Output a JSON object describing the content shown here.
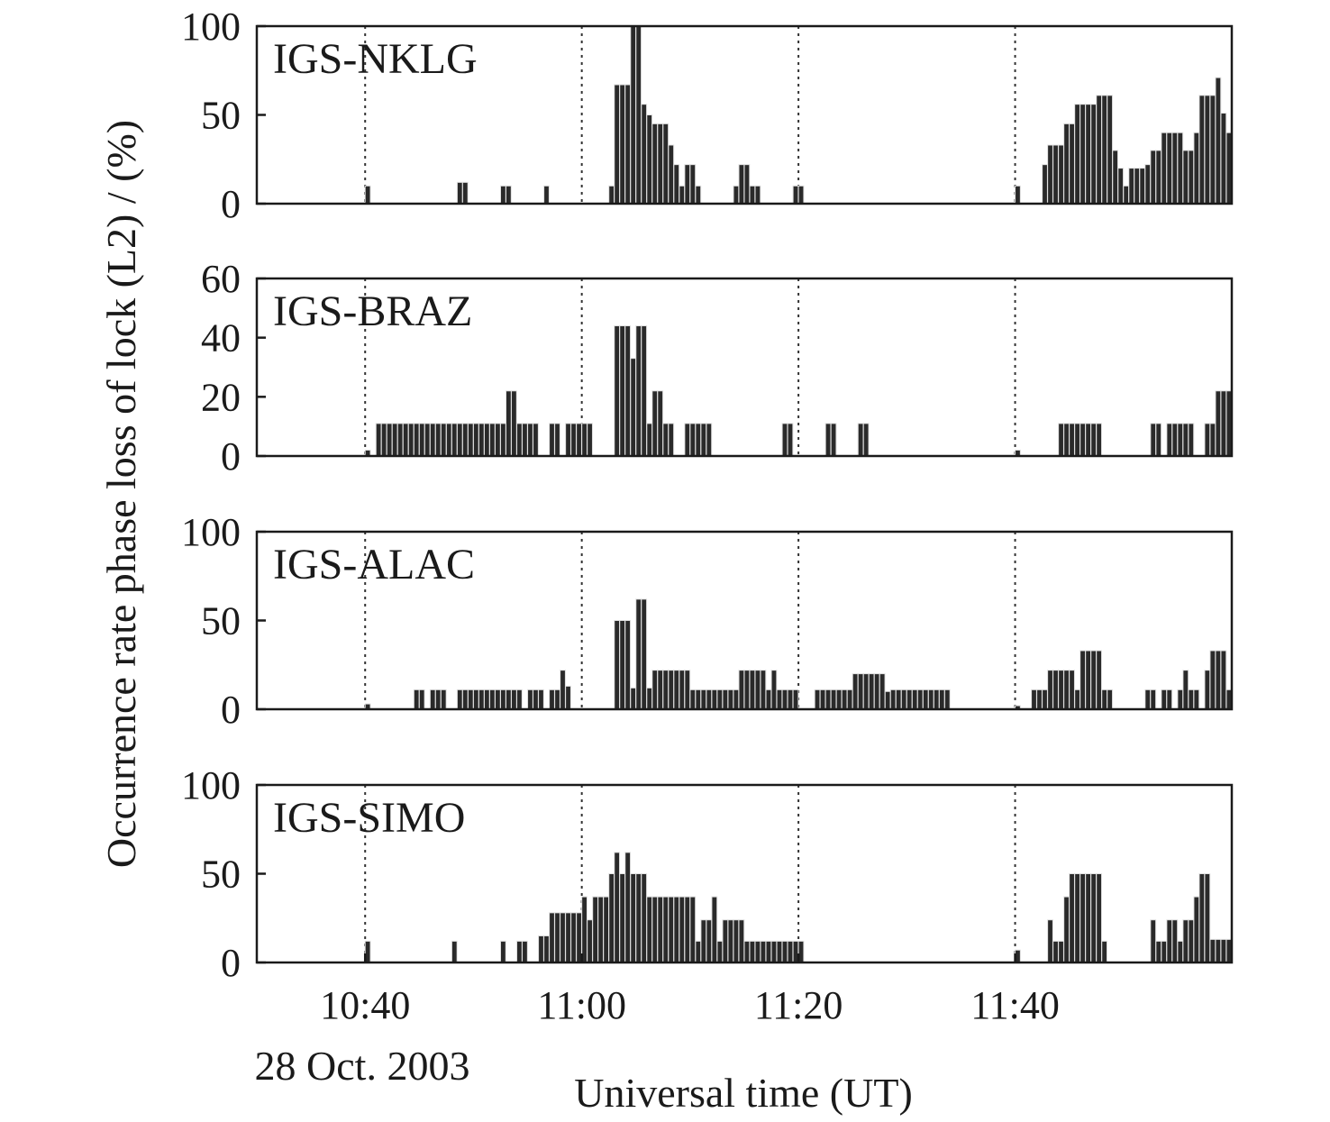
{
  "chart_data": {
    "type": "bar",
    "ylabel": "Occurrence rate phase loss of lock (L2) / (%)",
    "xlabel": "Universal time (UT)",
    "date_label": "28 Oct. 2003",
    "x_ticks": [
      "10:40",
      "11:00",
      "11:20",
      "11:40"
    ],
    "x_unit": "minutes after 10:30 UT",
    "xlim": [
      0,
      90
    ],
    "grid": "dotted vertical lines at 10:40, 11:00, 11:20, 11:40",
    "panels": [
      {
        "name": "IGS-NKLG",
        "ylim": [
          0,
          100
        ],
        "yticks": [
          "0",
          "50",
          "100"
        ],
        "x": [
          10,
          18.5,
          19,
          22.5,
          23,
          26.5,
          32.5,
          33,
          33.5,
          34,
          34.5,
          35,
          35.5,
          36,
          36.5,
          37,
          37.5,
          38,
          38.5,
          39,
          39.5,
          40,
          40.5,
          44,
          44.5,
          45,
          45.5,
          46,
          49.5,
          50,
          70,
          72.5,
          73,
          73.5,
          74,
          74.5,
          75,
          75.5,
          76,
          76.5,
          77,
          77.5,
          78,
          78.5,
          79,
          79.5,
          80,
          80.5,
          81,
          81.5,
          82,
          82.5,
          83,
          83.5,
          84,
          84.5,
          85,
          85.5,
          86,
          86.5,
          87,
          87.5,
          88,
          88.5,
          89,
          89.5
        ],
        "values": [
          10,
          12,
          12,
          10,
          10,
          10,
          10,
          67,
          67,
          67,
          100,
          100,
          56,
          50,
          45,
          45,
          45,
          33,
          22,
          10,
          22,
          22,
          10,
          10,
          22,
          22,
          10,
          10,
          10,
          10,
          10,
          22,
          33,
          33,
          33,
          45,
          45,
          56,
          56,
          56,
          56,
          61,
          61,
          61,
          30,
          20,
          10,
          20,
          20,
          20,
          22,
          30,
          30,
          40,
          40,
          40,
          40,
          30,
          30,
          40,
          61,
          61,
          61,
          71,
          51,
          40
        ]
      },
      {
        "name": "IGS-BRAZ",
        "ylim": [
          0,
          60
        ],
        "yticks": [
          "0",
          "20",
          "40",
          "60"
        ],
        "x": [
          10,
          11,
          11.5,
          12,
          12.5,
          13,
          13.5,
          14,
          14.5,
          15,
          15.5,
          16,
          16.5,
          17,
          17.5,
          18,
          18.5,
          19,
          19.5,
          20,
          20.5,
          21,
          21.5,
          22,
          22.5,
          23,
          23.5,
          24,
          24.5,
          25,
          25.5,
          27,
          27.5,
          28.5,
          29,
          29.5,
          30,
          30.5,
          33,
          33.5,
          34,
          34.5,
          35,
          35.5,
          36,
          36.5,
          37,
          37.5,
          38,
          39.5,
          40,
          40.5,
          41,
          41.5,
          48.5,
          49,
          52.5,
          53,
          55.5,
          56,
          70,
          74,
          74.5,
          75,
          75.5,
          76,
          76.5,
          77,
          77.5,
          82.5,
          83,
          84,
          84.5,
          85,
          85.5,
          86,
          87.5,
          88,
          88.5,
          89,
          89.5
        ],
        "values": [
          2,
          11,
          11,
          11,
          11,
          11,
          11,
          11,
          11,
          11,
          11,
          11,
          11,
          11,
          11,
          11,
          11,
          11,
          11,
          11,
          11,
          11,
          11,
          11,
          11,
          22,
          22,
          11,
          11,
          11,
          11,
          11,
          11,
          11,
          11,
          11,
          11,
          11,
          44,
          44,
          44,
          33,
          44,
          44,
          11,
          22,
          22,
          11,
          11,
          11,
          11,
          11,
          11,
          11,
          11,
          11,
          11,
          11,
          11,
          11,
          2,
          11,
          11,
          11,
          11,
          11,
          11,
          11,
          11,
          11,
          11,
          11,
          11,
          11,
          11,
          11,
          11,
          11,
          22,
          22,
          22
        ]
      },
      {
        "name": "IGS-ALAC",
        "ylim": [
          0,
          100
        ],
        "yticks": [
          "0",
          "50",
          "100"
        ],
        "x": [
          10,
          14.5,
          15,
          16,
          16.5,
          17,
          18.5,
          19,
          19.5,
          20,
          20.5,
          21,
          21.5,
          22,
          22.5,
          23,
          23.5,
          24,
          25,
          25.5,
          26,
          27,
          27.5,
          28,
          28.5,
          33,
          33.5,
          34,
          34.5,
          35,
          35.5,
          36,
          36.5,
          37,
          37.5,
          38,
          38.5,
          39,
          39.5,
          40,
          40.5,
          41,
          41.5,
          42,
          42.5,
          43,
          43.5,
          44,
          44.5,
          45,
          45.5,
          46,
          46.5,
          47,
          47.5,
          48,
          48.5,
          49,
          49.5,
          51.5,
          52,
          52.5,
          53,
          53.5,
          54,
          54.5,
          55,
          55.5,
          56,
          56.5,
          57,
          57.5,
          58,
          58.5,
          59,
          59.5,
          60,
          60.5,
          61,
          61.5,
          62,
          62.5,
          63,
          63.5,
          70,
          71.5,
          72,
          72.5,
          73,
          73.5,
          74,
          74.5,
          75,
          75.5,
          76,
          76.5,
          77,
          77.5,
          78,
          78.5,
          82,
          82.5,
          83.5,
          84,
          85,
          85.5,
          86,
          86.5,
          87.5,
          88,
          88.5,
          89,
          89.5
        ],
        "values": [
          3,
          11,
          11,
          11,
          11,
          11,
          11,
          11,
          11,
          11,
          11,
          11,
          11,
          11,
          11,
          11,
          11,
          11,
          11,
          11,
          11,
          11,
          11,
          22,
          13,
          50,
          50,
          50,
          12,
          62,
          62,
          12,
          22,
          22,
          22,
          22,
          22,
          22,
          22,
          11,
          11,
          11,
          11,
          11,
          11,
          11,
          11,
          11,
          22,
          22,
          22,
          22,
          22,
          11,
          22,
          11,
          11,
          11,
          11,
          11,
          11,
          11,
          11,
          11,
          11,
          11,
          20,
          20,
          20,
          20,
          20,
          20,
          10,
          11,
          11,
          11,
          11,
          11,
          11,
          11,
          11,
          11,
          11,
          11,
          2,
          11,
          11,
          11,
          22,
          22,
          22,
          22,
          22,
          11,
          33,
          33,
          33,
          33,
          11,
          11,
          11,
          11,
          11,
          11,
          11,
          22,
          11,
          11,
          22,
          33,
          33,
          33,
          11
        ]
      },
      {
        "name": "IGS-SIMO",
        "ylim": [
          0,
          100
        ],
        "yticks": [
          "0",
          "50",
          "100"
        ],
        "x": [
          10,
          18,
          22.5,
          24,
          24.5,
          26,
          26.5,
          27,
          27.5,
          28,
          28.5,
          29,
          29.5,
          30,
          30.5,
          31,
          31.5,
          32,
          32.5,
          33,
          33.5,
          34,
          34.5,
          35,
          35.5,
          36,
          36.5,
          37,
          37.5,
          38,
          38.5,
          39,
          39.5,
          40,
          40.5,
          41,
          41.5,
          42,
          42.5,
          43,
          43.5,
          44,
          44.5,
          45,
          45.5,
          46,
          46.5,
          47,
          47.5,
          48,
          48.5,
          49,
          49.5,
          50,
          70,
          73,
          73.5,
          74,
          74.5,
          75,
          75.5,
          76,
          76.5,
          77,
          77.5,
          78,
          82.5,
          83,
          83.5,
          84,
          84.5,
          85,
          85.5,
          86,
          86.5,
          87,
          87.5,
          88,
          88.5,
          89,
          89.5
        ],
        "values": [
          12,
          12,
          12,
          12,
          12,
          15,
          15,
          28,
          28,
          28,
          28,
          28,
          28,
          37,
          24,
          37,
          37,
          37,
          50,
          62,
          50,
          62,
          50,
          50,
          50,
          37,
          37,
          37,
          37,
          37,
          37,
          37,
          37,
          37,
          12,
          24,
          24,
          37,
          12,
          24,
          24,
          24,
          24,
          12,
          12,
          12,
          12,
          12,
          12,
          12,
          12,
          12,
          12,
          12,
          7,
          24,
          12,
          12,
          37,
          50,
          50,
          50,
          50,
          50,
          50,
          12,
          24,
          12,
          12,
          24,
          24,
          12,
          24,
          24,
          37,
          50,
          50,
          13,
          13,
          13,
          13
        ]
      }
    ]
  }
}
